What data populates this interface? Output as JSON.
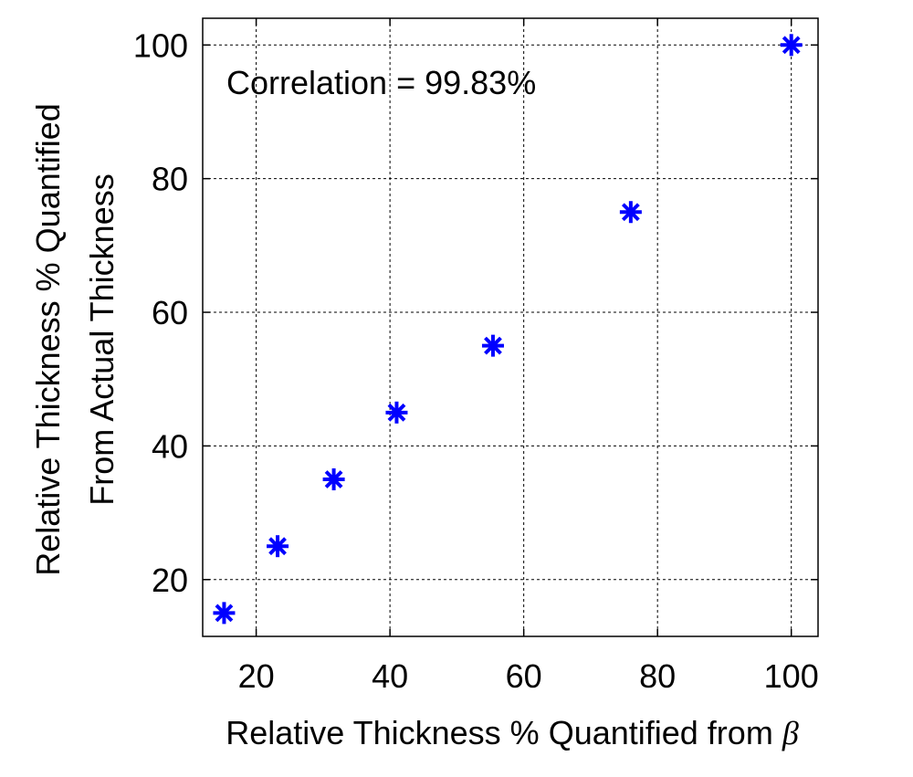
{
  "chart_data": {
    "type": "scatter",
    "xlabel": "Relative Thickness % Quantified from",
    "xlabel_symbol": "β",
    "ylabel_lines": [
      "Relative Thickness % Quantified",
      "From Actual Thickness"
    ],
    "annotation": "Correlation = 99.83%",
    "xlim": [
      12,
      104
    ],
    "ylim": [
      11.5,
      104
    ],
    "xticks": [
      20,
      40,
      60,
      80,
      100
    ],
    "yticks": [
      20,
      40,
      60,
      80,
      100
    ],
    "grid": true,
    "marker": "asterisk",
    "marker_color": "#0000ff",
    "series": [
      {
        "name": "Relative Thickness",
        "x": [
          15.2,
          23.2,
          31.6,
          41.0,
          55.4,
          76.0,
          100.0
        ],
        "y": [
          15,
          25,
          35,
          45,
          55,
          75,
          100
        ]
      }
    ]
  }
}
